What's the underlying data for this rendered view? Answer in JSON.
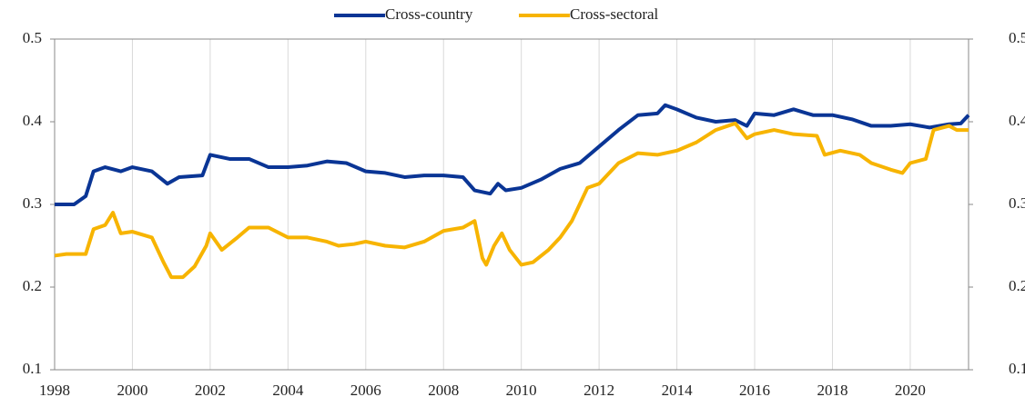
{
  "chart_data": {
    "type": "line",
    "xlim": [
      1998,
      2021.5
    ],
    "xticks": [
      1998,
      2000,
      2002,
      2004,
      2006,
      2008,
      2010,
      2012,
      2014,
      2016,
      2018,
      2020
    ],
    "ylim": [
      0.1,
      0.5
    ],
    "yticks": [
      0.1,
      0.2,
      0.3,
      0.4,
      0.5
    ],
    "y2lim": [
      0.1,
      0.5
    ],
    "y2ticks": [
      0.1,
      0.2,
      0.3,
      0.4,
      0.5
    ],
    "grid": true,
    "legend": "top",
    "series": [
      {
        "name": "Cross-country",
        "color": "#0a3595",
        "x": [
          1998,
          1998.5,
          1998.8,
          1999.0,
          1999.3,
          1999.7,
          2000,
          2000.5,
          2000.9,
          2001.2,
          2001.8,
          2002,
          2002.5,
          2003,
          2003.5,
          2004,
          2004.5,
          2005,
          2005.5,
          2006,
          2006.5,
          2007,
          2007.5,
          2008,
          2008.5,
          2008.8,
          2009.2,
          2009.4,
          2009.6,
          2010,
          2010.5,
          2011,
          2011.5,
          2012,
          2012.5,
          2013,
          2013.5,
          2013.7,
          2014,
          2014.5,
          2015,
          2015.5,
          2015.8,
          2016,
          2016.5,
          2017,
          2017.5,
          2018,
          2018.5,
          2019,
          2019.5,
          2020,
          2020.5,
          2021,
          2021.3,
          2021.5
        ],
        "values": [
          0.3,
          0.3,
          0.31,
          0.34,
          0.345,
          0.34,
          0.345,
          0.34,
          0.325,
          0.333,
          0.335,
          0.36,
          0.355,
          0.355,
          0.345,
          0.345,
          0.347,
          0.352,
          0.35,
          0.34,
          0.338,
          0.333,
          0.335,
          0.335,
          0.333,
          0.317,
          0.313,
          0.325,
          0.317,
          0.32,
          0.33,
          0.343,
          0.35,
          0.37,
          0.39,
          0.408,
          0.41,
          0.42,
          0.415,
          0.405,
          0.4,
          0.402,
          0.395,
          0.41,
          0.408,
          0.415,
          0.408,
          0.408,
          0.403,
          0.395,
          0.395,
          0.397,
          0.393,
          0.397,
          0.398,
          0.408
        ]
      },
      {
        "name": "Cross-sectoral",
        "color": "#f7b400",
        "x": [
          1998,
          1998.3,
          1998.8,
          1999,
          1999.3,
          1999.5,
          1999.7,
          2000,
          2000.5,
          2000.8,
          2001,
          2001.3,
          2001.6,
          2001.9,
          2002,
          2002.3,
          2002.7,
          2003,
          2003.5,
          2004,
          2004.5,
          2005,
          2005.3,
          2005.7,
          2006,
          2006.5,
          2007,
          2007.5,
          2008,
          2008.5,
          2008.8,
          2009,
          2009.1,
          2009.3,
          2009.5,
          2009.7,
          2010,
          2010.3,
          2010.7,
          2011,
          2011.3,
          2011.7,
          2012,
          2012.5,
          2013,
          2013.5,
          2014,
          2014.5,
          2015,
          2015.5,
          2015.8,
          2016,
          2016.5,
          2017,
          2017.6,
          2017.8,
          2018.2,
          2018.7,
          2019,
          2019.5,
          2019.8,
          2020,
          2020.4,
          2020.6,
          2021,
          2021.2,
          2021.5
        ],
        "values": [
          0.238,
          0.24,
          0.24,
          0.27,
          0.275,
          0.29,
          0.265,
          0.267,
          0.26,
          0.23,
          0.212,
          0.212,
          0.225,
          0.25,
          0.265,
          0.245,
          0.26,
          0.272,
          0.272,
          0.26,
          0.26,
          0.255,
          0.25,
          0.252,
          0.255,
          0.25,
          0.248,
          0.255,
          0.268,
          0.272,
          0.28,
          0.235,
          0.227,
          0.25,
          0.265,
          0.245,
          0.227,
          0.23,
          0.245,
          0.26,
          0.28,
          0.32,
          0.325,
          0.35,
          0.362,
          0.36,
          0.365,
          0.375,
          0.39,
          0.398,
          0.38,
          0.385,
          0.39,
          0.385,
          0.383,
          0.36,
          0.365,
          0.36,
          0.35,
          0.342,
          0.338,
          0.35,
          0.355,
          0.39,
          0.395,
          0.39,
          0.39
        ]
      }
    ]
  }
}
